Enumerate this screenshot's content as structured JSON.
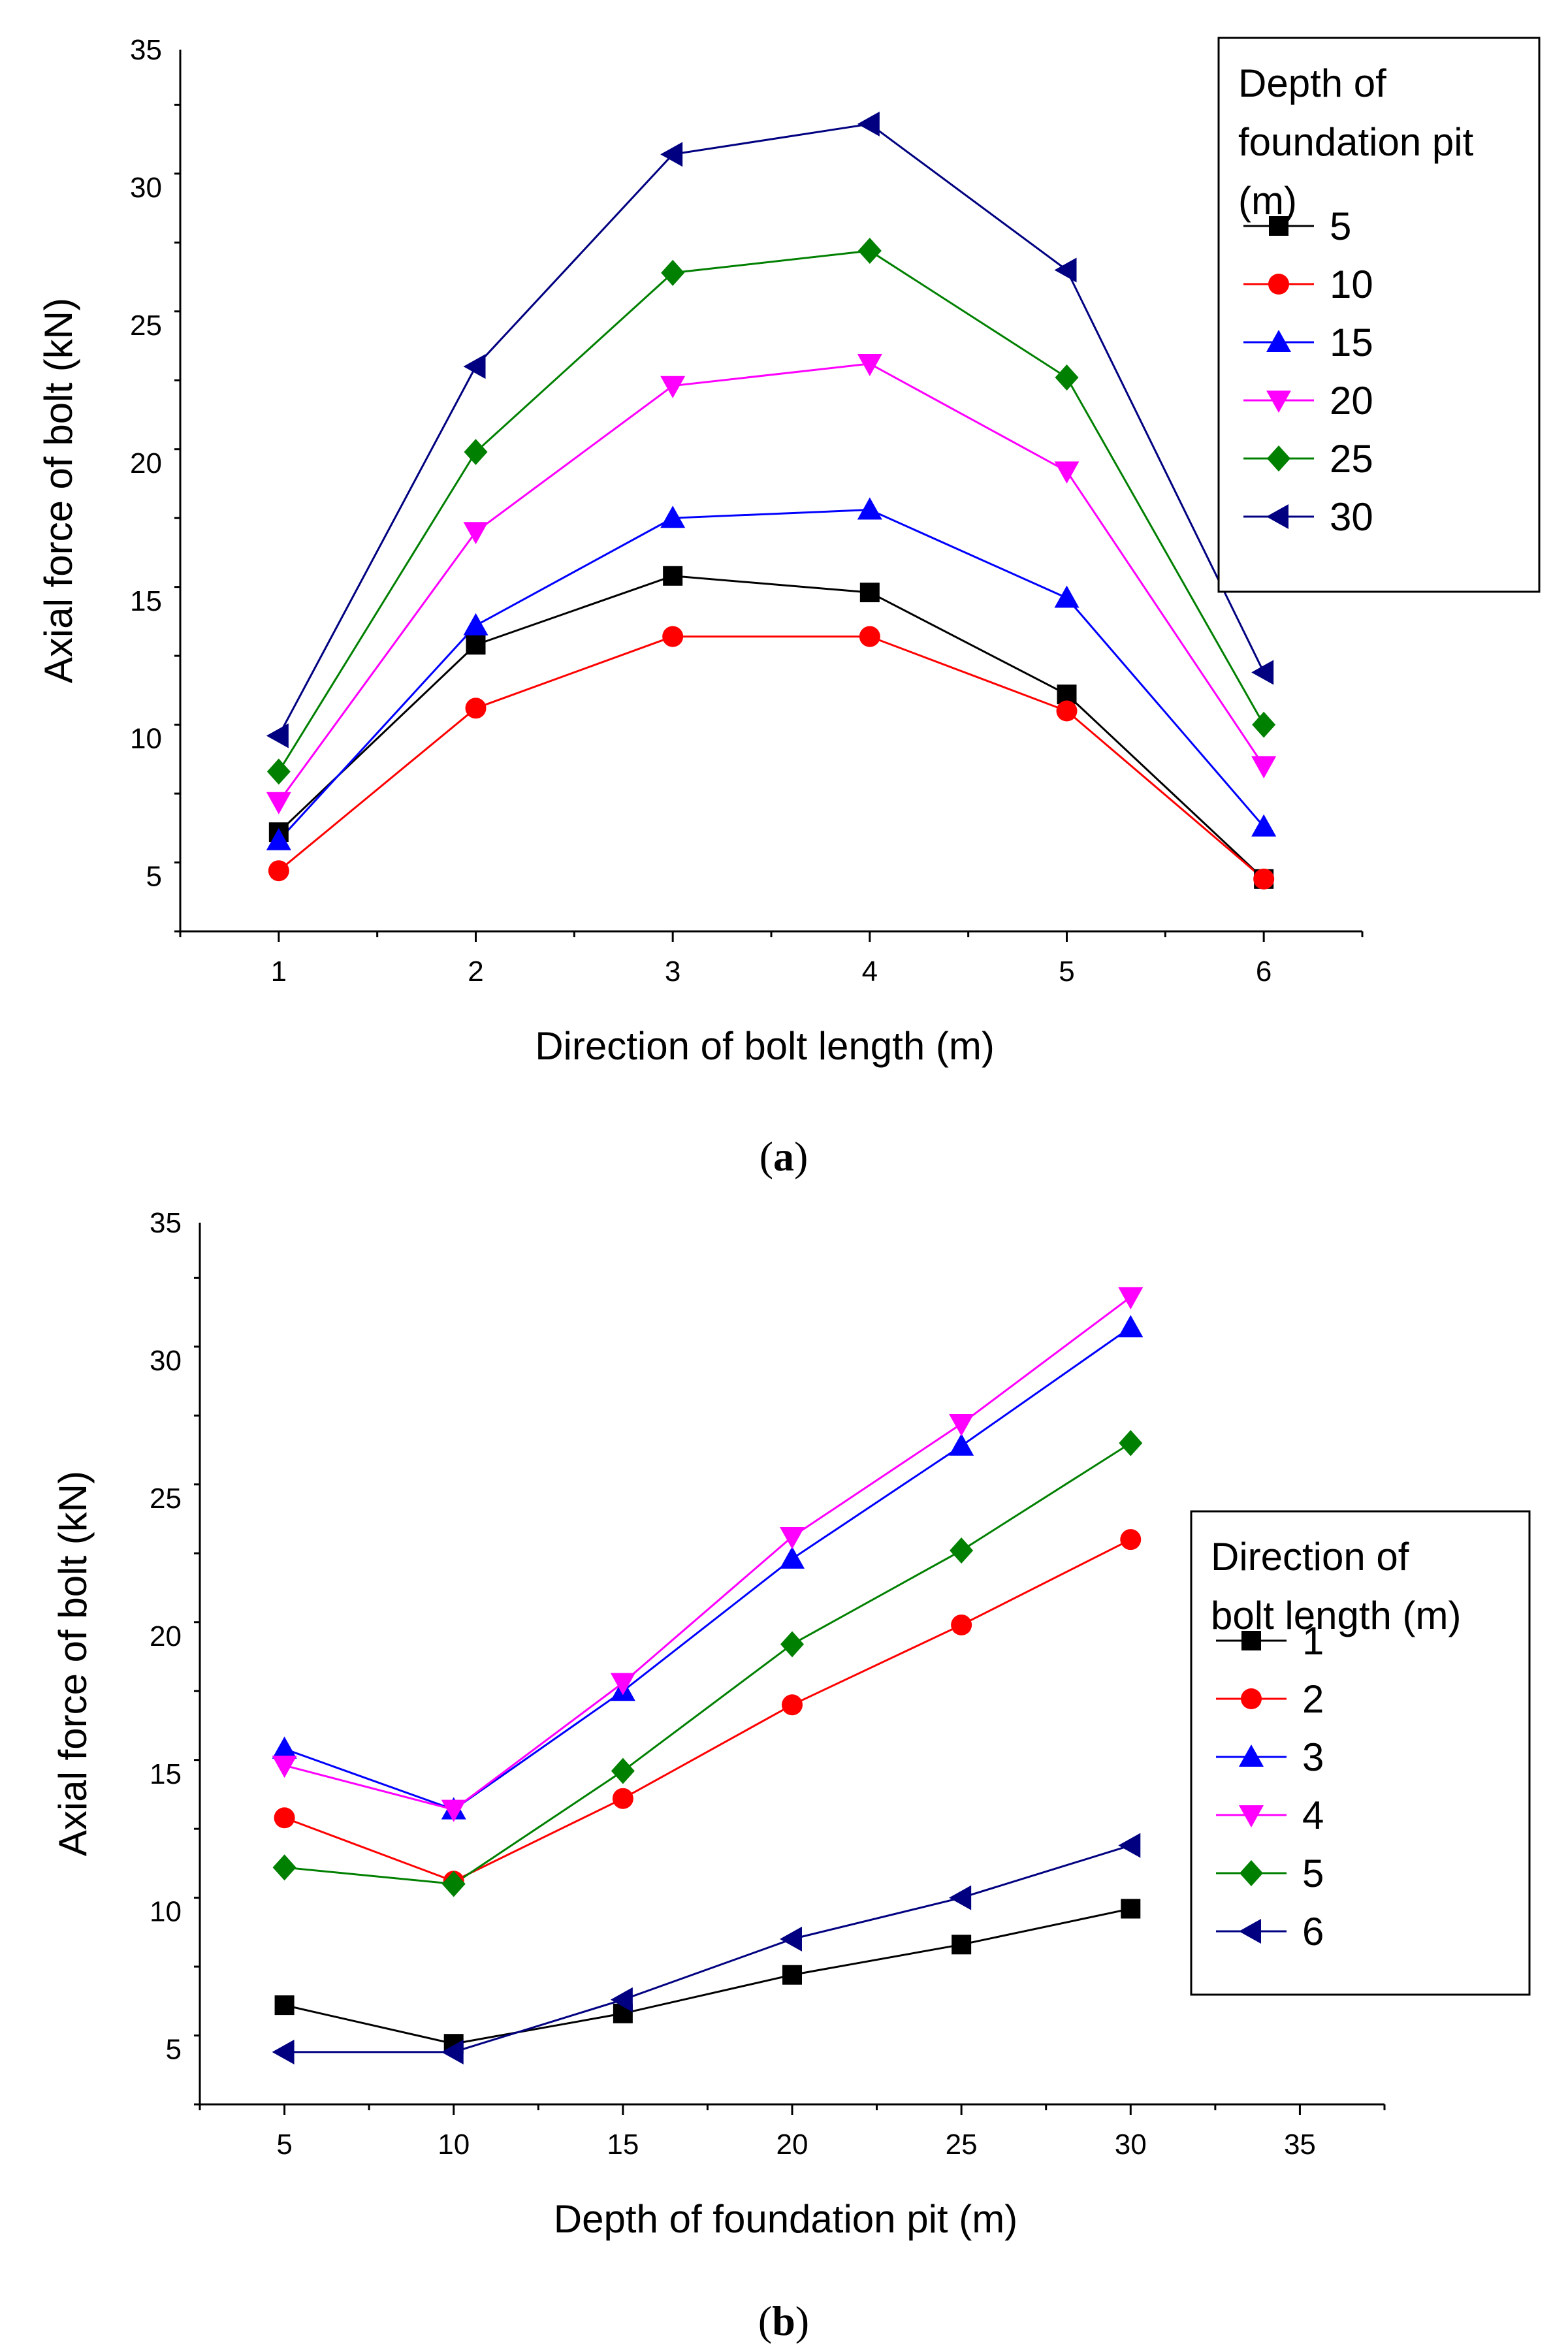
{
  "chart_data": [
    {
      "type": "line",
      "caption": "a",
      "xlabel": "Direction of bolt length (m)",
      "ylabel": "Axial force of bolt (kN)",
      "xlim": [
        0.5,
        6.5
      ],
      "ylim": [
        3,
        35
      ],
      "x_ticks": [
        1,
        2,
        3,
        4,
        5,
        6
      ],
      "y_ticks": [
        5,
        10,
        15,
        20,
        25,
        30,
        35
      ],
      "x": [
        1,
        2,
        3,
        4,
        5,
        6
      ],
      "legend_title_lines": [
        "Depth of",
        "foundation pit",
        "(m)"
      ],
      "legend_position": "top-right",
      "series": [
        {
          "name": "5",
          "color": "#000000",
          "marker": "square",
          "values": [
            6.6,
            13.4,
            15.9,
            15.3,
            11.6,
            4.9
          ]
        },
        {
          "name": "10",
          "color": "#ff0000",
          "marker": "circle",
          "values": [
            5.2,
            11.1,
            13.7,
            13.7,
            11.0,
            4.9
          ]
        },
        {
          "name": "15",
          "color": "#0000ff",
          "marker": "triangle-up",
          "values": [
            6.3,
            14.1,
            18.0,
            18.3,
            15.1,
            6.8
          ]
        },
        {
          "name": "20",
          "color": "#ff00ff",
          "marker": "triangle-down",
          "values": [
            7.7,
            17.5,
            22.8,
            23.6,
            19.7,
            9.0
          ]
        },
        {
          "name": "25",
          "color": "#008000",
          "marker": "diamond",
          "values": [
            8.8,
            20.4,
            26.9,
            27.7,
            23.1,
            10.5
          ]
        },
        {
          "name": "30",
          "color": "#000080",
          "marker": "triangle-left",
          "values": [
            10.1,
            23.5,
            31.2,
            32.3,
            27.0,
            12.4
          ]
        }
      ]
    },
    {
      "type": "line",
      "caption": "b",
      "xlabel": "Depth of foundation pit (m)",
      "ylabel": "Axial force of bolt (kN)",
      "xlim": [
        2.5,
        37.5
      ],
      "ylim": [
        3,
        35
      ],
      "x_ticks": [
        5,
        10,
        15,
        20,
        25,
        30,
        35
      ],
      "y_ticks": [
        5,
        10,
        15,
        20,
        25,
        30,
        35
      ],
      "x": [
        5,
        10,
        15,
        20,
        25,
        30
      ],
      "legend_title_lines": [
        "Direction of",
        "bolt length (m)"
      ],
      "legend_position": "right",
      "series": [
        {
          "name": "1",
          "color": "#000000",
          "marker": "square",
          "values": [
            6.6,
            5.2,
            6.3,
            7.7,
            8.8,
            10.1
          ]
        },
        {
          "name": "2",
          "color": "#ff0000",
          "marker": "circle",
          "values": [
            13.4,
            11.1,
            14.1,
            17.5,
            20.4,
            23.5
          ]
        },
        {
          "name": "3",
          "color": "#0000ff",
          "marker": "triangle-up",
          "values": [
            15.9,
            13.7,
            18.0,
            22.8,
            26.9,
            31.2
          ]
        },
        {
          "name": "4",
          "color": "#ff00ff",
          "marker": "triangle-down",
          "values": [
            15.3,
            13.7,
            18.3,
            23.6,
            27.7,
            32.3
          ]
        },
        {
          "name": "5",
          "color": "#008000",
          "marker": "diamond",
          "values": [
            11.6,
            11.0,
            15.1,
            19.7,
            23.1,
            27.0
          ]
        },
        {
          "name": "6",
          "color": "#000080",
          "marker": "triangle-left",
          "values": [
            4.9,
            4.9,
            6.8,
            9.0,
            10.5,
            12.4
          ]
        }
      ]
    }
  ]
}
